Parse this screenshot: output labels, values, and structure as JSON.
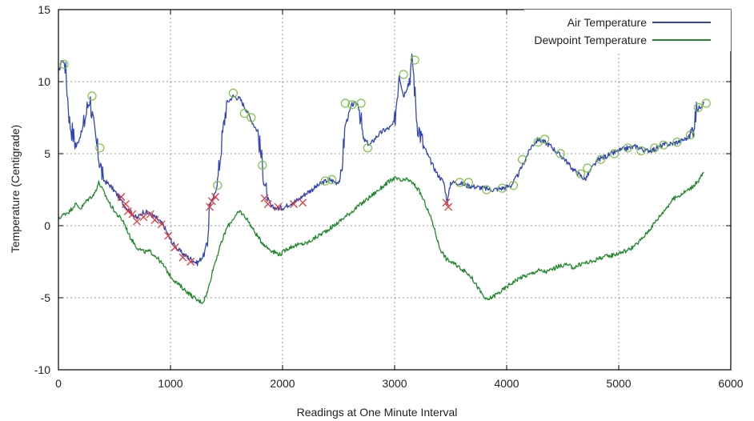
{
  "chart_data": {
    "type": "line",
    "title": "",
    "xlabel": "Readings at One Minute Interval",
    "ylabel": "Temperature (Centigrade)",
    "xlim": [
      0,
      6000
    ],
    "ylim": [
      -10,
      15
    ],
    "x_ticks": [
      "0",
      "1000",
      "2000",
      "3000",
      "4000",
      "5000",
      "6000"
    ],
    "y_ticks": [
      "-10",
      "-5",
      "0",
      "5",
      "10",
      "15"
    ],
    "grid": true,
    "legend_position": "top-right",
    "series": [
      {
        "name": "Air Temperature",
        "color": "#3346b8",
        "x": [
          0,
          30,
          60,
          100,
          160,
          220,
          280,
          320,
          360,
          400,
          460,
          520,
          580,
          640,
          700,
          760,
          820,
          880,
          940,
          1000,
          1060,
          1120,
          1180,
          1240,
          1300,
          1330,
          1350,
          1380,
          1420,
          1460,
          1500,
          1560,
          1620,
          1680,
          1730,
          1780,
          1820,
          1860,
          1900,
          1960,
          2020,
          2080,
          2140,
          2200,
          2280,
          2360,
          2420,
          2480,
          2520,
          2560,
          2620,
          2680,
          2720,
          2780,
          2840,
          2900,
          2960,
          3000,
          3040,
          3080,
          3120,
          3160,
          3200,
          3260,
          3320,
          3380,
          3440,
          3470,
          3500,
          3560,
          3640,
          3720,
          3800,
          3880,
          3960,
          4040,
          4100,
          4160,
          4220,
          4280,
          4340,
          4400,
          4460,
          4520,
          4580,
          4640,
          4700,
          4760,
          4820,
          4880,
          4940,
          5000,
          5080,
          5160,
          5240,
          5320,
          5400,
          5480,
          5560,
          5640,
          5700,
          5760
        ],
        "y": [
          10.6,
          11.5,
          11.2,
          7.2,
          5.5,
          6.8,
          9.0,
          6.5,
          4.8,
          3.2,
          2.8,
          2.2,
          1.5,
          1.0,
          0.5,
          1.0,
          0.8,
          0.5,
          0.0,
          -1.0,
          -1.6,
          -2.0,
          -2.3,
          -2.6,
          -2.0,
          -1.0,
          1.5,
          1.8,
          3.0,
          6.0,
          8.5,
          9.0,
          8.8,
          8.0,
          7.2,
          6.5,
          4.2,
          2.0,
          1.3,
          1.2,
          1.3,
          1.6,
          1.8,
          2.2,
          2.6,
          3.0,
          3.2,
          3.0,
          3.2,
          7.0,
          8.4,
          8.5,
          6.0,
          5.6,
          6.2,
          6.6,
          6.8,
          7.2,
          10.5,
          9.0,
          9.8,
          11.5,
          7.2,
          5.5,
          4.5,
          3.6,
          3.0,
          1.6,
          3.0,
          3.0,
          2.8,
          2.7,
          2.6,
          2.5,
          2.6,
          2.8,
          3.5,
          4.5,
          5.5,
          6.0,
          5.8,
          5.5,
          5.0,
          4.6,
          4.0,
          3.6,
          3.2,
          4.0,
          4.6,
          4.8,
          5.0,
          5.2,
          5.4,
          5.5,
          5.2,
          5.3,
          5.6,
          5.7,
          5.9,
          6.2,
          8.0,
          8.6
        ]
      },
      {
        "name": "Dewpoint Temperature",
        "color": "#1f8a2a",
        "x": [
          0,
          50,
          100,
          150,
          200,
          260,
          320,
          360,
          400,
          460,
          520,
          580,
          640,
          700,
          760,
          820,
          880,
          940,
          1000,
          1060,
          1120,
          1180,
          1240,
          1290,
          1330,
          1380,
          1440,
          1500,
          1560,
          1620,
          1680,
          1740,
          1800,
          1860,
          1920,
          1980,
          2040,
          2100,
          2160,
          2220,
          2300,
          2380,
          2460,
          2540,
          2620,
          2700,
          2780,
          2860,
          2940,
          3000,
          3060,
          3120,
          3180,
          3220,
          3280,
          3340,
          3400,
          3460,
          3520,
          3600,
          3680,
          3760,
          3820,
          3880,
          3960,
          4040,
          4120,
          4200,
          4280,
          4360,
          4440,
          4520,
          4600,
          4680,
          4760,
          4840,
          4920,
          5000,
          5080,
          5160,
          5240,
          5320,
          5400,
          5480,
          5560,
          5640,
          5700,
          5760
        ],
        "y": [
          0.5,
          0.8,
          1.0,
          1.5,
          1.2,
          1.8,
          2.2,
          3.0,
          2.4,
          1.5,
          0.8,
          0.3,
          -0.8,
          -1.5,
          -1.8,
          -1.8,
          -2.2,
          -2.8,
          -3.5,
          -4.0,
          -4.4,
          -4.8,
          -5.2,
          -5.3,
          -4.6,
          -3.0,
          -1.5,
          -0.2,
          0.5,
          1.0,
          0.5,
          -0.3,
          -1.0,
          -1.5,
          -1.8,
          -2.0,
          -1.6,
          -1.4,
          -1.3,
          -1.2,
          -0.8,
          -0.4,
          0.0,
          0.5,
          1.0,
          1.5,
          2.0,
          2.5,
          3.0,
          3.3,
          3.1,
          3.2,
          2.8,
          2.4,
          1.4,
          0.2,
          -1.5,
          -2.3,
          -2.6,
          -3.0,
          -3.5,
          -4.5,
          -5.2,
          -4.9,
          -4.5,
          -4.0,
          -3.6,
          -3.4,
          -3.1,
          -3.2,
          -2.9,
          -2.7,
          -2.9,
          -2.6,
          -2.5,
          -2.2,
          -2.1,
          -1.9,
          -1.7,
          -1.3,
          -0.6,
          0.2,
          1.0,
          1.8,
          2.2,
          2.6,
          3.0,
          3.7
        ]
      }
    ],
    "annotations": {
      "air_circle_marker_color": "#7dc242",
      "cross_marker_color": "#e03a3a",
      "circle_markers": [
        {
          "x": 50,
          "y": 11.2
        },
        {
          "x": 300,
          "y": 9.0
        },
        {
          "x": 370,
          "y": 5.4
        },
        {
          "x": 1420,
          "y": 2.8
        },
        {
          "x": 1560,
          "y": 9.2
        },
        {
          "x": 1660,
          "y": 7.8
        },
        {
          "x": 1720,
          "y": 7.5
        },
        {
          "x": 1820,
          "y": 4.2
        },
        {
          "x": 2380,
          "y": 3.1
        },
        {
          "x": 2440,
          "y": 3.2
        },
        {
          "x": 2560,
          "y": 8.5
        },
        {
          "x": 2620,
          "y": 8.4
        },
        {
          "x": 2700,
          "y": 8.5
        },
        {
          "x": 2760,
          "y": 5.4
        },
        {
          "x": 3080,
          "y": 10.5
        },
        {
          "x": 3180,
          "y": 11.5
        },
        {
          "x": 3580,
          "y": 3.0
        },
        {
          "x": 3660,
          "y": 3.0
        },
        {
          "x": 3820,
          "y": 2.5
        },
        {
          "x": 3960,
          "y": 2.6
        },
        {
          "x": 4060,
          "y": 2.8
        },
        {
          "x": 4140,
          "y": 4.6
        },
        {
          "x": 4280,
          "y": 5.8
        },
        {
          "x": 4340,
          "y": 6.0
        },
        {
          "x": 4480,
          "y": 5.0
        },
        {
          "x": 4660,
          "y": 3.6
        },
        {
          "x": 4720,
          "y": 4.0
        },
        {
          "x": 4840,
          "y": 4.6
        },
        {
          "x": 4960,
          "y": 5.0
        },
        {
          "x": 5080,
          "y": 5.4
        },
        {
          "x": 5200,
          "y": 5.2
        },
        {
          "x": 5320,
          "y": 5.4
        },
        {
          "x": 5400,
          "y": 5.6
        },
        {
          "x": 5520,
          "y": 5.8
        },
        {
          "x": 5640,
          "y": 6.3
        },
        {
          "x": 5710,
          "y": 8.2
        },
        {
          "x": 5780,
          "y": 8.5
        }
      ],
      "cross_markers": [
        {
          "x": 560,
          "y": 2.0
        },
        {
          "x": 600,
          "y": 1.5
        },
        {
          "x": 620,
          "y": 1.0
        },
        {
          "x": 660,
          "y": 0.8
        },
        {
          "x": 700,
          "y": 0.3
        },
        {
          "x": 760,
          "y": 0.6
        },
        {
          "x": 820,
          "y": 0.8
        },
        {
          "x": 860,
          "y": 0.4
        },
        {
          "x": 920,
          "y": 0.1
        },
        {
          "x": 980,
          "y": -0.7
        },
        {
          "x": 1040,
          "y": -1.5
        },
        {
          "x": 1110,
          "y": -2.2
        },
        {
          "x": 1180,
          "y": -2.5
        },
        {
          "x": 1350,
          "y": 1.3
        },
        {
          "x": 1370,
          "y": 1.7
        },
        {
          "x": 1400,
          "y": 2.0
        },
        {
          "x": 1840,
          "y": 1.9
        },
        {
          "x": 1870,
          "y": 1.5
        },
        {
          "x": 1960,
          "y": 1.3
        },
        {
          "x": 2100,
          "y": 1.5
        },
        {
          "x": 2180,
          "y": 1.6
        },
        {
          "x": 3460,
          "y": 1.6
        },
        {
          "x": 3480,
          "y": 1.3
        }
      ]
    }
  }
}
